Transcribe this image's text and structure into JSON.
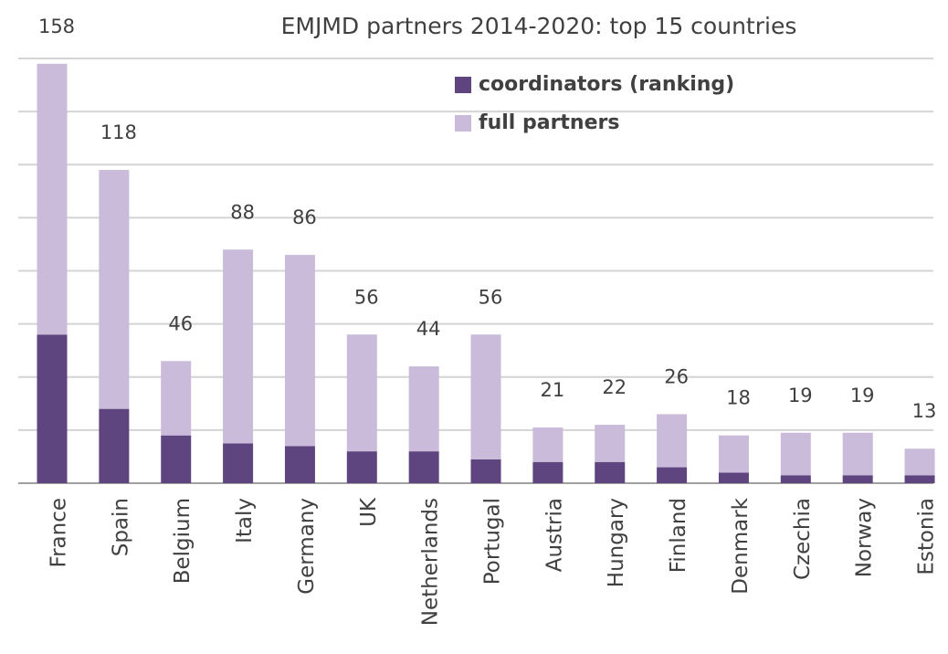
{
  "chart_data": {
    "type": "stacked_bar",
    "title": "EMJMD partners 2014-2020: top 15 countries",
    "categories": [
      "France",
      "Spain",
      "Belgium",
      "Italy",
      "Germany",
      "UK",
      "Netherlands",
      "Portugal",
      "Austria",
      "Hungary",
      "Finland",
      "Denmark",
      "Czechia",
      "Norway",
      "Estonia"
    ],
    "series": [
      {
        "name": "coordinators (ranking)",
        "color": "#5e4580",
        "values": [
          56,
          28,
          18,
          15,
          14,
          12,
          12,
          9,
          8,
          8,
          6,
          4,
          3,
          3,
          3
        ]
      },
      {
        "name": "full partners",
        "color": "#c9bbd9",
        "values": [
          102,
          90,
          28,
          73,
          72,
          44,
          32,
          47,
          13,
          14,
          20,
          14,
          16,
          16,
          10
        ]
      }
    ],
    "totals": [
      158,
      118,
      46,
      88,
      86,
      56,
      44,
      56,
      21,
      22,
      26,
      18,
      19,
      19,
      13
    ],
    "ylim": [
      0,
      160
    ],
    "yticks": [
      0,
      20,
      40,
      60,
      80,
      100,
      120,
      140,
      160
    ],
    "grid": true
  }
}
